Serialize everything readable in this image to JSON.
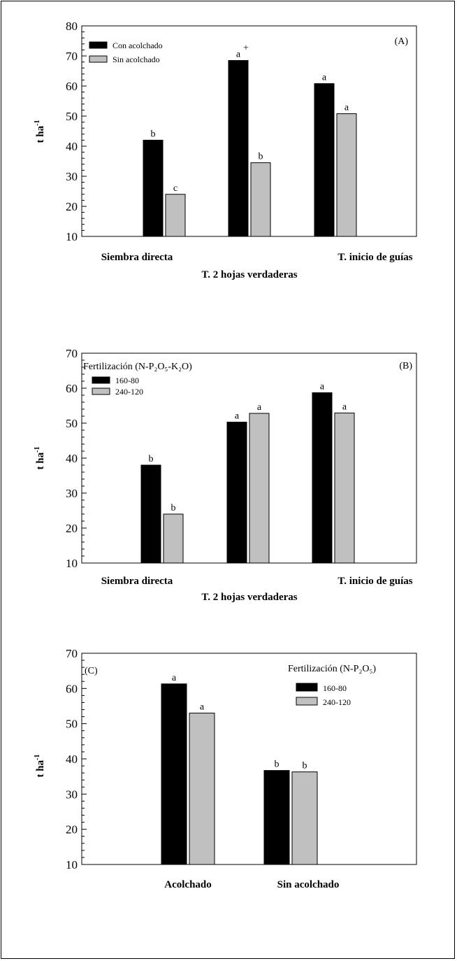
{
  "chart_data": [
    {
      "type": "bar",
      "panel_tag": "(A)",
      "ylabel": "t ha",
      "ylabel_sup": "-1",
      "ylim": [
        10,
        80
      ],
      "yticks": [
        10,
        20,
        30,
        40,
        50,
        60,
        70,
        80
      ],
      "categories": [
        "Siembra directa",
        "T. 2 hojas verdaderas",
        "T. inicio de guías"
      ],
      "series": [
        {
          "name": "Con acolchado",
          "color": "#000000",
          "values": [
            42,
            68.5,
            60.8
          ],
          "labels": [
            "b",
            "a",
            "a"
          ],
          "label_sups": [
            "",
            "+",
            ""
          ]
        },
        {
          "name": "Sin acolchado",
          "color": "#c0c0c0",
          "values": [
            24,
            34.5,
            50.8
          ],
          "labels": [
            "c",
            "b",
            "a"
          ],
          "label_sups": [
            "",
            "",
            ""
          ]
        }
      ],
      "legend_title": "",
      "legend_placement": "top-left"
    },
    {
      "type": "bar",
      "panel_tag": "(B)",
      "ylabel": "t ha",
      "ylabel_sup": "-1",
      "ylim": [
        10,
        70
      ],
      "yticks": [
        10,
        20,
        30,
        40,
        50,
        60,
        70
      ],
      "categories": [
        "Siembra directa",
        "T. 2 hojas verdaderas",
        "T. inicio de guías"
      ],
      "series": [
        {
          "name": "160-80",
          "color": "#000000",
          "values": [
            38,
            50.3,
            58.7
          ],
          "labels": [
            "b",
            "a",
            "a"
          ],
          "label_sups": [
            "",
            "",
            ""
          ]
        },
        {
          "name": "240-120",
          "color": "#c0c0c0",
          "values": [
            24,
            52.8,
            52.9
          ],
          "labels": [
            "b",
            "a",
            "a"
          ],
          "label_sups": [
            "",
            "",
            ""
          ]
        }
      ],
      "legend_title": "Fertilización (N-P₂O₅-K₂O)",
      "legend_placement": "top-left"
    },
    {
      "type": "bar",
      "panel_tag": "(C)",
      "ylabel": "t ha",
      "ylabel_sup": "-1",
      "ylim": [
        10,
        70
      ],
      "yticks": [
        10,
        20,
        30,
        40,
        50,
        60,
        70
      ],
      "categories": [
        "Acolchado",
        "Sin acolchado"
      ],
      "series": [
        {
          "name": "160-80",
          "color": "#000000",
          "values": [
            61.3,
            36.7
          ],
          "labels": [
            "a",
            "b"
          ],
          "label_sups": [
            "",
            ""
          ]
        },
        {
          "name": "240-120",
          "color": "#c0c0c0",
          "values": [
            53,
            36.3
          ],
          "labels": [
            "a",
            "b"
          ],
          "label_sups": [
            "",
            ""
          ]
        }
      ],
      "legend_title": "Fertilización (N-P₂O₅)",
      "legend_placement": "top-right"
    }
  ]
}
